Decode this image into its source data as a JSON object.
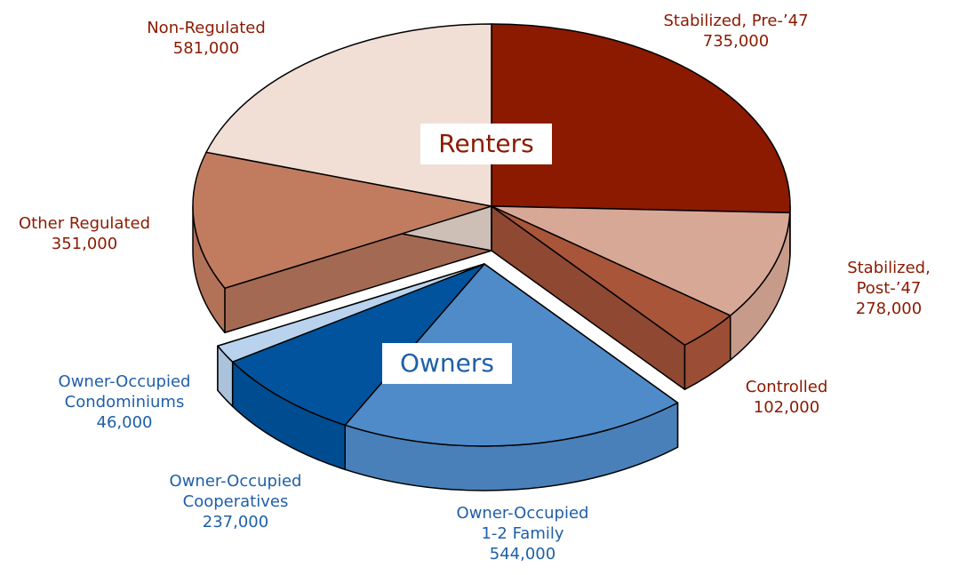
{
  "chart_data": {
    "type": "pie3d",
    "categories": [
      "Stabilized, Pre-’47",
      "Stabilized, Post-’47",
      "Controlled",
      "Owner-Occupied\n1-2 Family",
      "Owner-Occupied\nCooperatives",
      "Owner-Occupied\nCondominiums",
      "Other Regulated",
      "Non-Regulated"
    ],
    "values": [
      735000,
      278000,
      102000,
      544000,
      237000,
      46000,
      351000,
      581000
    ],
    "value_labels": [
      "735,000",
      "278,000",
      "102,000",
      "544,000",
      "237,000",
      "46,000",
      "351,000",
      "581,000"
    ],
    "colors": [
      "#8b1a00",
      "#d8a896",
      "#a8553a",
      "#4f8bc9",
      "#00539c",
      "#b9d3ee",
      "#c17c60",
      "#f1dfd6"
    ],
    "groups": [
      {
        "name": "Renters",
        "color": "#8b1a00",
        "members": [
          0,
          1,
          2,
          6,
          7
        ],
        "exploded": false
      },
      {
        "name": "Owners",
        "color": "#1f5fa8",
        "members": [
          3,
          4,
          5
        ],
        "exploded": true
      }
    ]
  }
}
